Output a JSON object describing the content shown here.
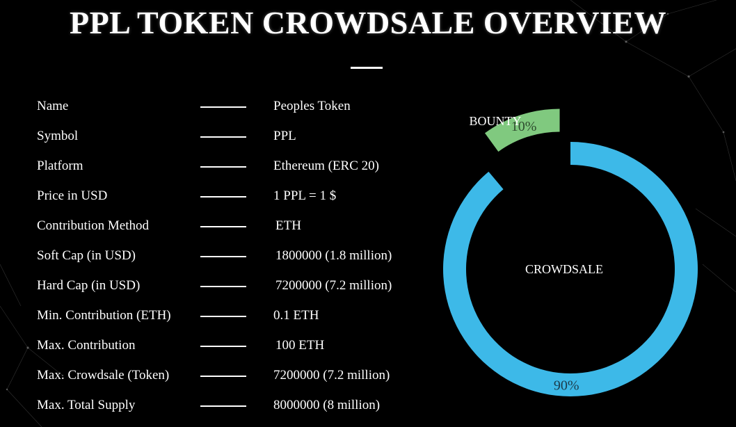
{
  "page": {
    "title": "PPL TOKEN CROWDSALE OVERVIEW"
  },
  "details": [
    {
      "label": "Name",
      "value": "Peoples Token"
    },
    {
      "label": "Symbol",
      "value": "PPL"
    },
    {
      "label": "Platform",
      "value": "Ethereum (ERC 20)"
    },
    {
      "label": "Price in USD",
      "value": "1 PPL = 1 $"
    },
    {
      "label": "Contribution Method",
      "value": "ETH"
    },
    {
      "label": "Soft Cap (in USD)",
      "value": "1800000 (1.8 million)"
    },
    {
      "label": "Hard Cap (in USD)",
      "value": "7200000 (7.2 million)"
    },
    {
      "label": "Min. Contribution (ETH)",
      "value": "0.1 ETH"
    },
    {
      "label": "Max. Contribution",
      "value": "100 ETH"
    },
    {
      "label": "Max. Crowdsale (Token)",
      "value": "7200000 (7.2 million)"
    },
    {
      "label": "Max. Total Supply",
      "value": "8000000 (8 million)"
    }
  ],
  "chart_data": {
    "type": "pie",
    "donut": true,
    "slices": [
      {
        "label": "CROWDSALE",
        "value": 90,
        "value_label": "90%",
        "color": "#3db9e8"
      },
      {
        "label": "BOUNTY",
        "value": 10,
        "value_label": "10%",
        "color": "#80c97f"
      }
    ],
    "exploded": "BOUNTY"
  },
  "colors": {
    "background": "#000000",
    "text": "#ffffff",
    "crowdsale": "#3db9e8",
    "bounty": "#80c97f"
  }
}
